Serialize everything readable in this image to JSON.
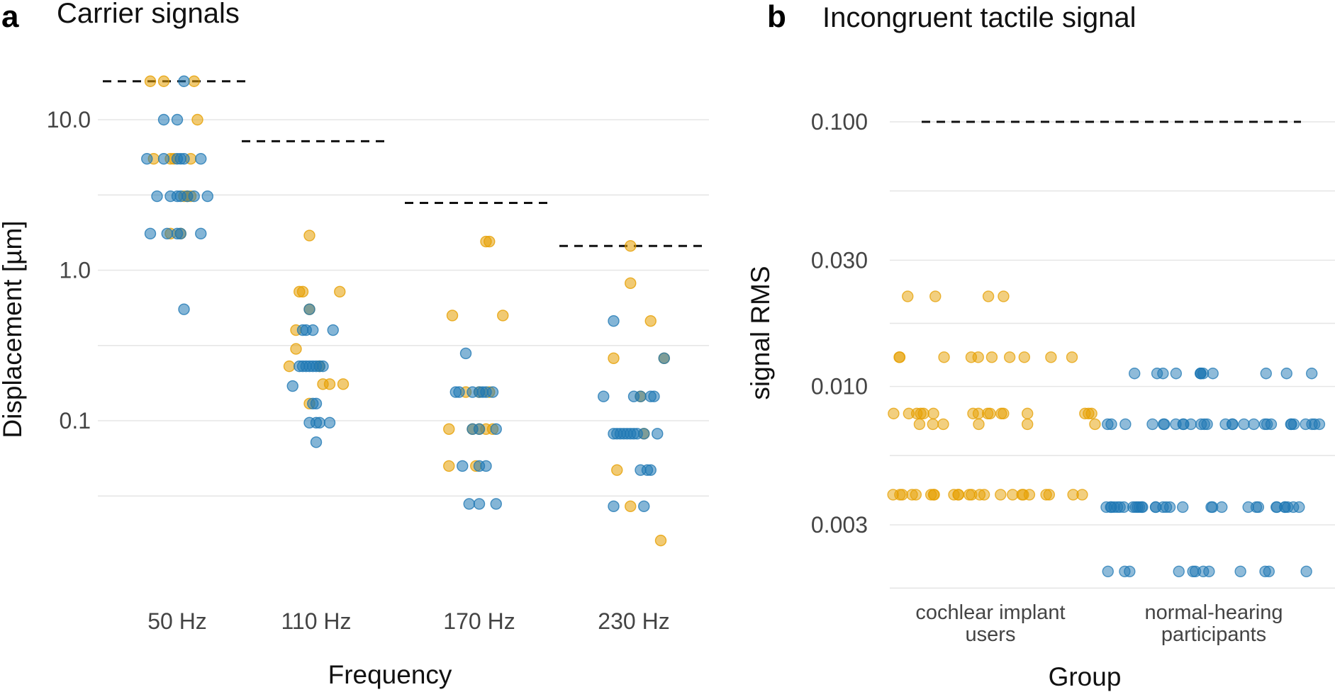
{
  "colors": {
    "ci": "#E69F00",
    "nh": "#1F78B4",
    "grid": "#e6e6e6",
    "ref": "#111111"
  },
  "chart_data": [
    {
      "id": "a",
      "panel_letter": "a",
      "type": "scatter",
      "title": "Carrier signals",
      "xlabel": "Frequency",
      "ylabel": "Displacement [µm]",
      "yscale": "log",
      "ylim": [
        0.011,
        30
      ],
      "yticks": [
        {
          "v": 10,
          "label": "10.0"
        },
        {
          "v": 1,
          "label": "1.0"
        },
        {
          "v": 0.1,
          "label": "0.1"
        }
      ],
      "yminor": [
        3.16,
        0.316,
        0.0316
      ],
      "categories": [
        "50 Hz",
        "110 Hz",
        "170 Hz",
        "230 Hz"
      ],
      "reference": [
        18,
        7.2,
        2.8,
        1.45
      ],
      "series": [
        {
          "name": "cochlear implant users",
          "color_key": "ci",
          "points": [
            [
              0,
              -0.4,
              18
            ],
            [
              0,
              -0.2,
              18
            ],
            [
              0,
              0.25,
              18
            ],
            [
              0,
              0.3,
              10
            ],
            [
              0,
              -0.35,
              5.5
            ],
            [
              0,
              -0.1,
              5.5
            ],
            [
              0,
              -0.05,
              5.5
            ],
            [
              0,
              0.2,
              5.5
            ],
            [
              0,
              0.1,
              3.1
            ],
            [
              0,
              0.15,
              3.1
            ],
            [
              0,
              0.2,
              3.1
            ],
            [
              0,
              -0.1,
              1.75
            ],
            [
              0,
              0.05,
              1.75
            ],
            [
              1,
              -0.25,
              0.72
            ],
            [
              1,
              -0.2,
              0.72
            ],
            [
              1,
              0.35,
              0.72
            ],
            [
              1,
              -0.1,
              0.55
            ],
            [
              1,
              -0.3,
              0.4
            ],
            [
              1,
              -0.3,
              0.3
            ],
            [
              1,
              -0.4,
              0.23
            ],
            [
              1,
              0.05,
              0.23
            ],
            [
              1,
              0.1,
              0.175
            ],
            [
              1,
              0.2,
              0.175
            ],
            [
              1,
              0.4,
              0.175
            ],
            [
              1,
              -0.1,
              0.13
            ],
            [
              1,
              -0.1,
              1.7
            ],
            [
              2,
              0.1,
              1.55
            ],
            [
              2,
              0.15,
              1.55
            ],
            [
              2,
              -0.4,
              0.5
            ],
            [
              2,
              0.35,
              0.5
            ],
            [
              2,
              -0.2,
              0.155
            ],
            [
              2,
              0.0,
              0.155
            ],
            [
              2,
              0.15,
              0.155
            ],
            [
              2,
              -0.45,
              0.088
            ],
            [
              2,
              -0.1,
              0.088
            ],
            [
              2,
              0.0,
              0.088
            ],
            [
              2,
              0.1,
              0.088
            ],
            [
              2,
              0.2,
              0.088
            ],
            [
              2,
              -0.45,
              0.05
            ],
            [
              2,
              -0.05,
              0.05
            ],
            [
              3,
              -0.05,
              1.45
            ],
            [
              3,
              -0.05,
              0.82
            ],
            [
              3,
              0.25,
              0.46
            ],
            [
              3,
              -0.3,
              0.26
            ],
            [
              3,
              0.45,
              0.26
            ],
            [
              3,
              0.1,
              0.145
            ],
            [
              3,
              0.15,
              0.082
            ],
            [
              3,
              -0.25,
              0.047
            ],
            [
              3,
              -0.05,
              0.027
            ],
            [
              3,
              0.4,
              0.016
            ]
          ]
        },
        {
          "name": "normal-hearing participants",
          "color_key": "nh",
          "points": [
            [
              0,
              0.1,
              18
            ],
            [
              0,
              -0.2,
              10
            ],
            [
              0,
              0.0,
              10
            ],
            [
              0,
              -0.45,
              5.5
            ],
            [
              0,
              -0.2,
              5.5
            ],
            [
              0,
              0.0,
              5.5
            ],
            [
              0,
              0.05,
              5.5
            ],
            [
              0,
              0.1,
              5.5
            ],
            [
              0,
              0.35,
              5.5
            ],
            [
              0,
              -0.3,
              3.1
            ],
            [
              0,
              -0.1,
              3.1
            ],
            [
              0,
              0.0,
              3.1
            ],
            [
              0,
              0.05,
              3.1
            ],
            [
              0,
              0.15,
              3.1
            ],
            [
              0,
              0.25,
              3.1
            ],
            [
              0,
              0.45,
              3.1
            ],
            [
              0,
              -0.4,
              1.75
            ],
            [
              0,
              -0.15,
              1.75
            ],
            [
              0,
              0.0,
              1.75
            ],
            [
              0,
              0.05,
              1.75
            ],
            [
              0,
              0.35,
              1.75
            ],
            [
              0,
              0.1,
              0.55
            ],
            [
              1,
              -0.1,
              0.55
            ],
            [
              1,
              -0.2,
              0.4
            ],
            [
              1,
              -0.15,
              0.4
            ],
            [
              1,
              -0.05,
              0.4
            ],
            [
              1,
              0.25,
              0.4
            ],
            [
              1,
              -0.25,
              0.23
            ],
            [
              1,
              -0.2,
              0.23
            ],
            [
              1,
              -0.15,
              0.23
            ],
            [
              1,
              -0.1,
              0.23
            ],
            [
              1,
              -0.05,
              0.23
            ],
            [
              1,
              0.0,
              0.23
            ],
            [
              1,
              0.05,
              0.23
            ],
            [
              1,
              0.1,
              0.23
            ],
            [
              1,
              -0.35,
              0.17
            ],
            [
              1,
              -0.05,
              0.13
            ],
            [
              1,
              0.0,
              0.13
            ],
            [
              1,
              -0.1,
              0.097
            ],
            [
              1,
              0.0,
              0.097
            ],
            [
              1,
              0.05,
              0.097
            ],
            [
              1,
              0.2,
              0.097
            ],
            [
              1,
              0.0,
              0.072
            ],
            [
              2,
              -0.2,
              0.28
            ],
            [
              2,
              -0.35,
              0.155
            ],
            [
              2,
              -0.3,
              0.155
            ],
            [
              2,
              -0.1,
              0.155
            ],
            [
              2,
              0.0,
              0.155
            ],
            [
              2,
              0.05,
              0.155
            ],
            [
              2,
              0.1,
              0.155
            ],
            [
              2,
              0.2,
              0.155
            ],
            [
              2,
              -0.1,
              0.088
            ],
            [
              2,
              0.0,
              0.088
            ],
            [
              2,
              0.25,
              0.088
            ],
            [
              2,
              -0.25,
              0.05
            ],
            [
              2,
              0.0,
              0.05
            ],
            [
              2,
              0.1,
              0.05
            ],
            [
              2,
              -0.15,
              0.028
            ],
            [
              2,
              0.0,
              0.028
            ],
            [
              2,
              0.25,
              0.028
            ],
            [
              3,
              -0.3,
              0.46
            ],
            [
              3,
              0.45,
              0.26
            ],
            [
              3,
              -0.45,
              0.145
            ],
            [
              3,
              0.0,
              0.145
            ],
            [
              3,
              0.1,
              0.145
            ],
            [
              3,
              0.25,
              0.145
            ],
            [
              3,
              0.3,
              0.145
            ],
            [
              3,
              -0.3,
              0.082
            ],
            [
              3,
              -0.25,
              0.082
            ],
            [
              3,
              -0.2,
              0.082
            ],
            [
              3,
              -0.15,
              0.082
            ],
            [
              3,
              -0.1,
              0.082
            ],
            [
              3,
              -0.05,
              0.082
            ],
            [
              3,
              0.0,
              0.082
            ],
            [
              3,
              0.05,
              0.082
            ],
            [
              3,
              0.15,
              0.082
            ],
            [
              3,
              0.35,
              0.082
            ],
            [
              3,
              0.1,
              0.047
            ],
            [
              3,
              0.2,
              0.047
            ],
            [
              3,
              0.25,
              0.047
            ],
            [
              3,
              -0.3,
              0.027
            ],
            [
              3,
              0.15,
              0.027
            ]
          ]
        }
      ]
    },
    {
      "id": "b",
      "panel_letter": "b",
      "type": "scatter",
      "title": "Incongruent tactile signal",
      "xlabel": "Group",
      "ylabel": "signal RMS",
      "yscale": "log",
      "ylim": [
        0.0018,
        0.13
      ],
      "yticks": [
        {
          "v": 0.1,
          "label": "0.100"
        },
        {
          "v": 0.03,
          "label": "0.030"
        },
        {
          "v": 0.01,
          "label": "0.010"
        },
        {
          "v": 0.003,
          "label": "0.003"
        }
      ],
      "yminor": [
        0.0548,
        0.01732,
        0.00548,
        0.00173
      ],
      "categories": [
        "cochlear implant users",
        "normal-hearing participants"
      ],
      "reference": [
        0.1
      ],
      "reference_span": [
        0.5,
        2.5
      ],
      "series": [
        {
          "name": "cochlear implant users",
          "color_key": "ci",
          "group": 0,
          "y_levels": [
            {
              "y": 0.0219,
              "n": 4
            },
            {
              "y": 0.0129,
              "n": 10
            },
            {
              "y": 0.0079,
              "n": 16
            },
            {
              "y": 0.0072,
              "n": 6
            },
            {
              "y": 0.0039,
              "n": 24
            }
          ]
        },
        {
          "name": "normal-hearing participants",
          "color_key": "nh",
          "group": 1,
          "y_levels": [
            {
              "y": 0.0112,
              "n": 12
            },
            {
              "y": 0.0072,
              "n": 28
            },
            {
              "y": 0.0035,
              "n": 32
            },
            {
              "y": 0.002,
              "n": 12
            }
          ]
        }
      ]
    }
  ]
}
